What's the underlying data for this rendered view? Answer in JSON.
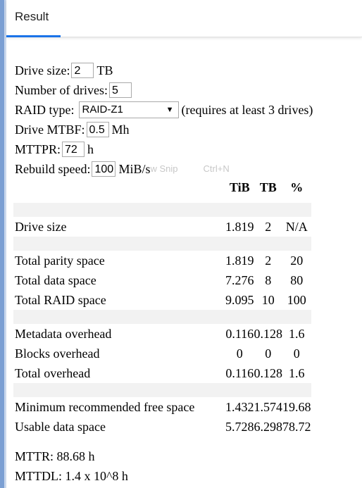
{
  "tab": {
    "label": "Result"
  },
  "form": {
    "drive_size_label": "Drive size:",
    "drive_size_value": "2",
    "drive_size_unit": "TB",
    "num_drives_label": "Number of drives:",
    "num_drives_value": "5",
    "raid_type_label": "RAID type:",
    "raid_type_value": "RAID-Z1",
    "raid_type_note": "(requires at least 3 drives)",
    "mtbf_label": "Drive MTBF:",
    "mtbf_value": "0.5",
    "mtbf_unit": "Mh",
    "mttpr_label": "MTTPR:",
    "mttpr_value": "72",
    "mttpr_unit": "h",
    "rebuild_label": "Rebuild speed:",
    "rebuild_value": "100",
    "rebuild_unit": "MiB/s",
    "snip_hint": "w Snip",
    "snip_shortcut": "Ctrl+N"
  },
  "table": {
    "headers": [
      "TiB",
      "TB",
      "%"
    ],
    "rows": {
      "drive_size": [
        "Drive size",
        "1.819",
        "2",
        "N/A"
      ],
      "parity": [
        "Total parity space",
        "1.819",
        "2",
        "20"
      ],
      "data": [
        "Total data space",
        "7.276",
        "8",
        "80"
      ],
      "raid": [
        "Total RAID space",
        "9.095",
        "10",
        "100"
      ],
      "metadata": [
        "Metadata overhead",
        "0.116",
        "0.128",
        "1.6"
      ],
      "blocks": [
        "Blocks overhead",
        "0",
        "0",
        "0"
      ],
      "overhead": [
        "Total overhead",
        "0.116",
        "0.128",
        "1.6"
      ],
      "min_free": [
        "Minimum recommended free space",
        "1.432",
        "1.574",
        "19.68"
      ],
      "usable": [
        "Usable data space",
        "5.728",
        "6.298",
        "78.72"
      ]
    }
  },
  "footer": {
    "mttr": "MTTR: 88.68 h",
    "mttdl": "MTTDL: 1.4 x 10^8 h"
  },
  "colors": {
    "accent": "#1a73e8",
    "separator": "#f2f2f2"
  }
}
